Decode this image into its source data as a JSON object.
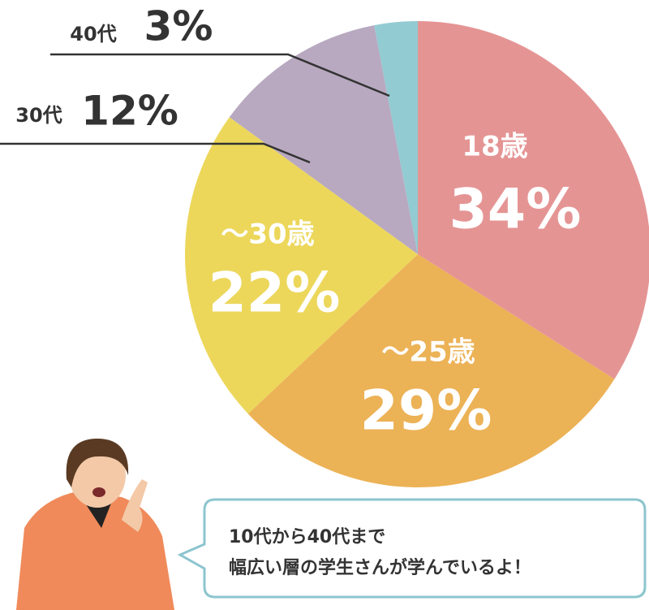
{
  "chart_data": {
    "type": "pie",
    "categories": [
      "18歳",
      "～25歳",
      "～30歳",
      "30代",
      "40代"
    ],
    "values": [
      34,
      29,
      22,
      12,
      3
    ],
    "value_labels": [
      "34%",
      "29%",
      "22%",
      "12%",
      "3%"
    ],
    "colors": [
      "#e59494",
      "#ecb256",
      "#ecd75b",
      "#b8a9c0",
      "#93cbd3"
    ]
  },
  "speech_bubble": {
    "lines": [
      "10代から40代まで",
      "幅広い層の学生さんが学んでいるよ！"
    ]
  }
}
